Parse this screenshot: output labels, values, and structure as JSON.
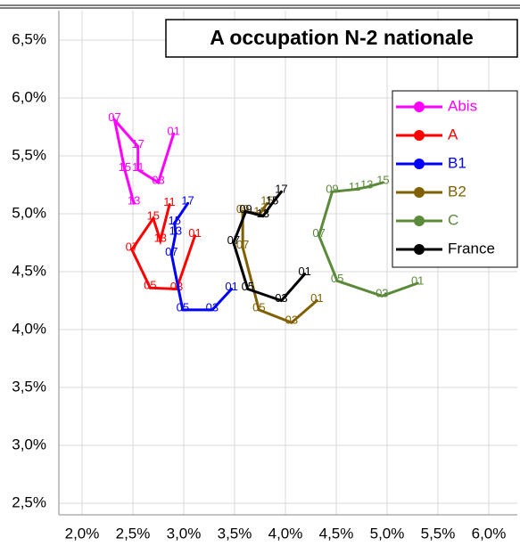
{
  "chart_data": {
    "type": "line",
    "title": "A occupation N-2 nationale",
    "xlim": [
      2,
      6
    ],
    "ylim": [
      2.5,
      6.5
    ],
    "grid": true,
    "legend": "upper right",
    "xticks": [
      {
        "value": 2,
        "label": "2,0%"
      },
      {
        "value": 2.5,
        "label": "2,5%"
      },
      {
        "value": 3,
        "label": "3,0%"
      },
      {
        "value": 3.5,
        "label": "3,5%"
      },
      {
        "value": 4,
        "label": "4,0%"
      },
      {
        "value": 4.5,
        "label": "4,5%"
      },
      {
        "value": 5,
        "label": "5,0%"
      },
      {
        "value": 5.5,
        "label": "5,5%"
      },
      {
        "value": 6,
        "label": "6,0%"
      }
    ],
    "yticks": [
      {
        "value": 2.5,
        "label": "2,5%"
      },
      {
        "value": 3,
        "label": "3,0%"
      },
      {
        "value": 3.5,
        "label": "3,5%"
      },
      {
        "value": 4,
        "label": "4,0%"
      },
      {
        "value": 4.5,
        "label": "4,5%"
      },
      {
        "value": 5,
        "label": "5,0%"
      },
      {
        "value": 5.5,
        "label": "5,5%"
      },
      {
        "value": 6,
        "label": "6,0%"
      },
      {
        "value": 6.5,
        "label": "6,5%"
      }
    ],
    "series": [
      {
        "name": "Abis",
        "color": "#ff00ff",
        "labels": [
          "01",
          "03",
          "11",
          "17",
          "07",
          "15",
          "13"
        ],
        "x": [
          2.9,
          2.75,
          2.55,
          2.55,
          2.32,
          2.42,
          2.51
        ],
        "values": [
          5.69,
          5.27,
          5.38,
          5.58,
          5.81,
          5.38,
          5.09
        ]
      },
      {
        "name": "A",
        "color": "#ff0000",
        "labels": [
          "01",
          "03",
          "05",
          "07",
          "15",
          "13",
          "11"
        ],
        "x": [
          3.11,
          2.93,
          2.67,
          2.49,
          2.7,
          2.77,
          2.86
        ],
        "values": [
          4.81,
          4.35,
          4.36,
          4.69,
          4.96,
          4.77,
          5.08
        ]
      },
      {
        "name": "B1",
        "color": "#0000ff",
        "labels": [
          "01",
          "03",
          "05",
          "07",
          "13",
          "15",
          "17"
        ],
        "x": [
          3.47,
          3.28,
          2.99,
          2.88,
          2.92,
          2.91,
          3.04
        ],
        "values": [
          4.35,
          4.17,
          4.17,
          4.65,
          4.83,
          4.92,
          5.09
        ]
      },
      {
        "name": "B2",
        "color": "#806000",
        "labels": [
          "01",
          "03",
          "05",
          "07",
          "09",
          "13",
          "15"
        ],
        "x": [
          4.31,
          4.06,
          3.74,
          3.58,
          3.58,
          3.75,
          3.82
        ],
        "values": [
          4.25,
          4.06,
          4.17,
          4.71,
          5.02,
          5.0,
          5.09
        ]
      },
      {
        "name": "C",
        "color": "#5b8a3a",
        "labels": [
          "01",
          "03",
          "05",
          "07",
          "09",
          "11",
          "13",
          "15"
        ],
        "x": [
          5.3,
          4.95,
          4.51,
          4.33,
          4.46,
          4.68,
          4.8,
          4.96
        ],
        "values": [
          4.4,
          4.29,
          4.42,
          4.81,
          5.19,
          5.21,
          5.23,
          5.27
        ]
      },
      {
        "name": "France",
        "color": "#000000",
        "labels": [
          "01",
          "03",
          "05",
          "07",
          "09",
          "13",
          "15",
          "17"
        ],
        "x": [
          4.19,
          3.96,
          3.63,
          3.49,
          3.61,
          3.78,
          3.87,
          3.96
        ],
        "values": [
          4.48,
          4.25,
          4.35,
          4.75,
          5.02,
          4.98,
          5.09,
          5.19
        ]
      }
    ]
  }
}
